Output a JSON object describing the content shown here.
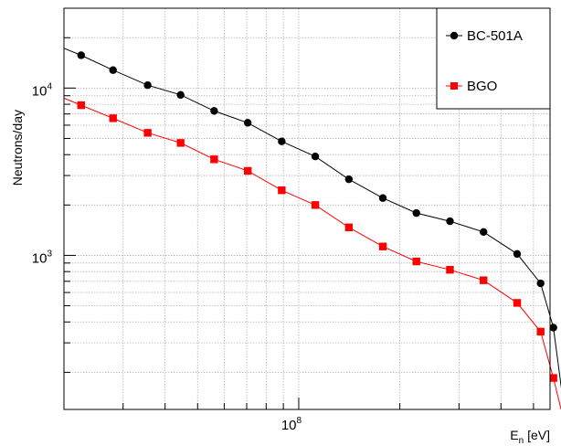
{
  "chart_data": {
    "type": "line",
    "xscale": "log",
    "yscale": "log",
    "xlim": [
      20000000,
      560000000
    ],
    "ylim": [
      120,
      30000
    ],
    "ylabel": "Neutrons/day",
    "xlabel_main": "E",
    "xlabel_sub": "n",
    "xlabel_unit": " [eV]",
    "x_tick_labels": [
      {
        "value": 100000000,
        "mantissa": "10",
        "exponent": "8"
      }
    ],
    "y_tick_labels": [
      {
        "value": 1000,
        "mantissa": "10",
        "exponent": "3"
      },
      {
        "value": 10000,
        "mantissa": "10",
        "exponent": "4"
      }
    ],
    "grid": true,
    "legend_position": "top-right",
    "series": [
      {
        "name": "BC-501A",
        "color": "#000000",
        "marker": "circle",
        "x": [
          22500000,
          28000000,
          35500000,
          44500000,
          56000000,
          70500000,
          89000000,
          112000000,
          141000000,
          178000000,
          224000000,
          282000000,
          355000000,
          447000000,
          525000000,
          573000000
        ],
        "y": [
          15700,
          12800,
          10400,
          9100,
          7300,
          6200,
          4800,
          3900,
          2850,
          2200,
          1790,
          1600,
          1380,
          1020,
          680,
          370
        ],
        "start": {
          "x": 20000000,
          "y": 17300
        },
        "end": {
          "x": 617000000,
          "y": 120
        }
      },
      {
        "name": "BGO",
        "color": "#ff0000",
        "marker": "square",
        "x": [
          22500000,
          28000000,
          35500000,
          44500000,
          56000000,
          70500000,
          89000000,
          112000000,
          141000000,
          178000000,
          224000000,
          282000000,
          355000000,
          447000000,
          525000000,
          573000000
        ],
        "y": [
          7900,
          6600,
          5400,
          4700,
          3750,
          3200,
          2450,
          2000,
          1470,
          1130,
          920,
          820,
          710,
          520,
          350,
          185
        ],
        "start": {
          "x": 20000000,
          "y": 8700
        },
        "end": {
          "x": 604000000,
          "y": 120
        }
      }
    ]
  }
}
